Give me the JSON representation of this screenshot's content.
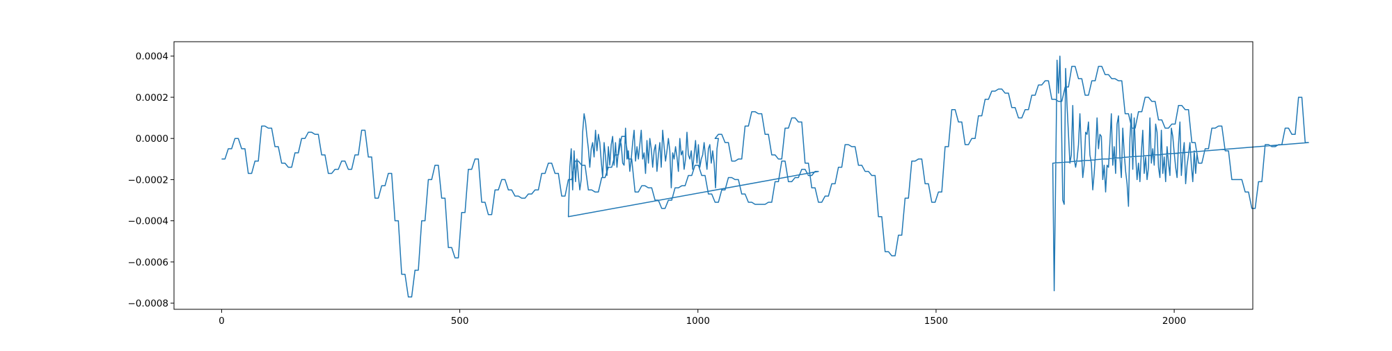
{
  "chart_data": {
    "type": "line",
    "title": "",
    "xlabel": "",
    "ylabel": "",
    "xlim": [
      -100,
      2165
    ],
    "ylim": [
      -0.00083,
      0.00047
    ],
    "grid": false,
    "legend": "none",
    "x_ticks": [
      {
        "value": 0,
        "label": "0"
      },
      {
        "value": 500,
        "label": "500"
      },
      {
        "value": 1000,
        "label": "1000"
      },
      {
        "value": 1500,
        "label": "1500"
      },
      {
        "value": 2000,
        "label": "2000"
      }
    ],
    "y_ticks": [
      {
        "value": 0.0004,
        "label": "0.0004"
      },
      {
        "value": 0.0002,
        "label": "0.0002"
      },
      {
        "value": 0.0,
        "label": "0.0000"
      },
      {
        "value": -0.0002,
        "label": "−0.0002"
      },
      {
        "value": -0.0004,
        "label": "−0.0004"
      },
      {
        "value": -0.0006,
        "label": "−0.0006"
      },
      {
        "value": -0.0008,
        "label": "−0.0008"
      }
    ],
    "series": [
      {
        "color": "#1f77b4",
        "segments": [
          {
            "start": 0,
            "stride": 7,
            "values": [
              -0.0001,
              -0.0001,
              -5e-05,
              -5e-05,
              0.0,
              0.0,
              -5e-05,
              -5e-05,
              -0.00017,
              -0.00017,
              -0.00011,
              -0.00011,
              6e-05,
              6e-05,
              5e-05,
              5e-05,
              -4e-05,
              -4e-05,
              -0.00012,
              -0.00012,
              -0.00014,
              -0.00014,
              -7e-05,
              -7e-05,
              0.0,
              0.0,
              3e-05,
              3e-05,
              2e-05,
              2e-05,
              -8e-05,
              -8e-05,
              -0.00017,
              -0.00017,
              -0.00015,
              -0.00015,
              -0.00011,
              -0.00011,
              -0.00015,
              -0.00015,
              -8e-05,
              -8e-05,
              4e-05,
              4e-05,
              -9e-05,
              -9e-05,
              -0.00029,
              -0.00029,
              -0.00023,
              -0.00023,
              -0.00017,
              -0.00017,
              -0.0004,
              -0.0004,
              -0.00066,
              -0.00066,
              -0.00077,
              -0.00077,
              -0.00064,
              -0.00064,
              -0.0004,
              -0.0004,
              -0.0002,
              -0.0002,
              -0.00013,
              -0.00013,
              -0.00029,
              -0.00029,
              -0.00053,
              -0.00053,
              -0.00058,
              -0.00058,
              -0.00036,
              -0.00036,
              -0.00015,
              -0.00015,
              -0.0001,
              -0.0001,
              -0.00031,
              -0.00031,
              -0.00037,
              -0.00037,
              -0.00025,
              -0.00025,
              -0.0002,
              -0.0002,
              -0.00025,
              -0.00025,
              -0.00028,
              -0.00028,
              -0.00029,
              -0.00029,
              -0.00027,
              -0.00027,
              -0.00025,
              -0.00025,
              -0.00017,
              -0.00017,
              -0.00012,
              -0.00012,
              -0.00017,
              -0.00017,
              -0.00028,
              -0.00028,
              -0.0002,
              -0.0002,
              -0.00011,
              -0.00011,
              -0.00013,
              -0.00013,
              -0.00025,
              -0.00025,
              -0.00026,
              -0.00026,
              -0.00019,
              -0.00019,
              -0.00014,
              -0.00014,
              -8e-05,
              -8e-05,
              1e-05,
              1e-05,
              -0.0001,
              -0.0001,
              -0.00026,
              -0.00026,
              -0.00023,
              -0.00023,
              -0.00024,
              -0.00024,
              -0.0003,
              -0.0003,
              -0.00034,
              -0.00034,
              -0.0003,
              -0.0003,
              -0.00024,
              -0.00024,
              -0.00023,
              -0.00023,
              -0.00018,
              -0.00018,
              -0.00013,
              -0.00013,
              -0.00018,
              -0.00018,
              -0.00027,
              -0.00027,
              -0.00031,
              -0.00031,
              -0.00025,
              -0.00025,
              -0.00019,
              -0.00019,
              -0.0002,
              -0.0002,
              -0.00027,
              -0.00027,
              -0.00031,
              -0.00031,
              -0.00032,
              -0.00032,
              -0.00032,
              -0.00032,
              -0.00031,
              -0.00031,
              -0.00021,
              -0.00021,
              -0.00011,
              -0.00011,
              -0.00021,
              -0.00021,
              -0.00019,
              -0.00019,
              -0.00015,
              -0.00015,
              -0.00018,
              -0.00018,
              -0.00016,
              -0.00016
            ]
          },
          {
            "start": 728,
            "stride": 3,
            "values": [
              -0.00038,
              -0.00014,
              -5e-05,
              -0.00025,
              -6e-05,
              -0.00021,
              -0.0001,
              -0.00018,
              -0.00025,
              -0.0002,
              3e-05,
              0.00012,
              8e-05,
              1e-05,
              -5e-05,
              -0.00014,
              -5e-05,
              -2e-05,
              -9e-05,
              4e-05,
              -6e-05,
              2e-05,
              -2e-05,
              -0.00011,
              -0.00019,
              -2e-05,
              -9e-05,
              -0.00018,
              -4e-05,
              -0.00013,
              -3e-05,
              1e-05,
              -0.00013,
              -2e-05,
              -0.00014,
              -6e-05,
              0.0,
              -3e-05,
              -0.00012,
              -0.00013,
              5e-05,
              -0.0001,
              -6e-05,
              -0.00016,
              -0.0001,
              -2e-05,
              4e-05,
              -0.00011,
              -4e-05,
              -0.0001,
              -3e-05,
              4e-05,
              -0.0001,
              -7e-05,
              -0.00017,
              -1e-05,
              -0.00012,
              0.0,
              -5e-05,
              -0.00014,
              -6e-05,
              -3e-05,
              -0.00016,
              -8e-05,
              -2e-05,
              -0.00014,
              4e-05,
              -4e-05,
              -0.00011,
              -6e-05,
              0.0,
              -6e-05,
              -0.00024,
              -7e-05,
              -0.0001,
              -4e-05,
              -9e-05,
              -0.00016,
              0.0,
              -8e-05,
              -6e-05,
              -0.00015,
              -0.0001,
              3e-05,
              -8e-05,
              -0.0001,
              -6e-05,
              -0.00015,
              -8e-05,
              -1e-05,
              -0.00012,
              -3e-05,
              -0.00014,
              -0.0001,
              -8e-05,
              -2e-05,
              -9e-05,
              -0.00015,
              -5e-05,
              -3e-05,
              -0.00012,
              -6e-05,
              -0.00012,
              -0.00024,
              -5e-05,
              0.0
            ]
          },
          {
            "start": 1036,
            "stride": 7,
            "values": [
              0.0,
              2e-05,
              2e-05,
              -2e-05,
              -2e-05,
              -0.00011,
              -0.00011,
              -0.0001,
              -0.0001,
              6e-05,
              6e-05,
              0.00013,
              0.00013,
              0.00012,
              0.00012,
              2e-05,
              2e-05,
              -8e-05,
              -8e-05,
              -0.0001,
              -0.0001,
              5e-05,
              5e-05,
              0.0001,
              0.0001,
              8e-05,
              8e-05,
              -0.00012,
              -0.00012,
              -0.00024,
              -0.00024,
              -0.00031,
              -0.00031,
              -0.00028,
              -0.00028,
              -0.00022,
              -0.00022,
              -0.00014,
              -0.00014,
              -3e-05,
              -3e-05,
              -4e-05,
              -4e-05,
              -0.00013,
              -0.00013,
              -0.00016,
              -0.00016,
              -0.00018,
              -0.00018,
              -0.00038,
              -0.00038,
              -0.00055,
              -0.00055,
              -0.00057,
              -0.00057,
              -0.00047,
              -0.00047,
              -0.00029,
              -0.00029,
              -0.00011,
              -0.00011,
              -0.0001,
              -0.0001,
              -0.00022,
              -0.00022,
              -0.00031,
              -0.00031,
              -0.00026,
              -0.00026,
              -4e-05,
              -4e-05,
              0.00014,
              0.00014,
              8e-05,
              8e-05,
              -3e-05,
              -3e-05,
              0.0,
              0.0,
              0.00011,
              0.00011,
              0.00019,
              0.00019,
              0.00023,
              0.00023,
              0.00024,
              0.00024,
              0.00022,
              0.00022,
              0.00015,
              0.00015,
              0.0001,
              0.0001,
              0.00014,
              0.00014,
              0.00021,
              0.00021,
              0.00026,
              0.00026,
              0.00028,
              0.00028,
              0.00019,
              0.00019,
              0.00018,
              0.00018,
              0.00025,
              0.00025,
              0.00035,
              0.00035,
              0.00029,
              0.00029,
              0.00021,
              0.00021,
              0.00028,
              0.00028,
              0.00035,
              0.00035,
              0.00031,
              0.00031,
              0.00029,
              0.00029,
              0.00028,
              0.00028,
              0.00012,
              0.00012,
              5e-05,
              5e-05,
              0.00013,
              0.00013,
              0.0002,
              0.0002,
              0.00018,
              0.00018,
              9e-05,
              9e-05,
              5e-05,
              5e-05,
              7e-05,
              7e-05,
              0.00016,
              0.00016,
              0.00014,
              0.00014,
              -2e-05,
              -2e-05,
              -0.00012,
              -0.00012,
              -5e-05,
              -5e-05,
              5e-05,
              5e-05,
              6e-05,
              6e-05,
              -6e-05,
              -6e-05,
              -0.0002,
              -0.0002,
              -0.0002,
              -0.0002,
              -0.00026,
              -0.00026,
              -0.00034,
              -0.00034,
              -0.00021,
              -0.00021,
              -3e-05,
              -3e-05,
              -4e-05,
              -4e-05,
              -3e-05,
              -3e-05,
              5e-05,
              5e-05,
              2e-05,
              2e-05,
              0.0002,
              0.0002,
              -2e-05,
              -2e-05
            ]
          },
          {
            "start": 1745,
            "stride": 3,
            "values": [
              -0.00012,
              -0.00074,
              -0.0002,
              0.00038,
              0.00022,
              0.0004,
              0.00012,
              -0.0003,
              -0.00032,
              0.00034,
              0.00016,
              2e-05,
              -0.00012,
              -8e-05,
              0.00016,
              -0.0001,
              -0.00014,
              -0.0001,
              -3e-05,
              0.00012,
              -5e-05,
              -0.00019,
              -0.00013,
              3e-05,
              2e-05,
              8e-05,
              -8e-05,
              -0.00012,
              -0.00025,
              -0.00017,
              -6e-05,
              0.0001,
              -5e-05,
              2e-05,
              1e-05,
              -0.0002,
              -0.00013,
              -0.00026,
              -0.00013,
              -0.00014,
              -2e-05,
              0.00012,
              -0.00013,
              -4e-05,
              -0.00017,
              7e-05,
              0.00011,
              -9e-05,
              -0.00019,
              5e-05,
              -7e-05,
              -0.00016,
              -0.00022,
              -0.00033,
              0.0,
              0.00012,
              -0.00015,
              0.0001,
              -8e-05,
              -0.0002,
              -0.00012,
              -0.00021,
              -7e-05,
              4e-05,
              -0.00017,
              -9e-05,
              -0.0002,
              -0.00014,
              0.0001,
              -0.00012,
              -5e-05,
              -0.00013,
              7e-05,
              3e-05,
              -0.00014,
              -0.00019,
              4e-05,
              -0.00017,
              -9e-05,
              -0.00021,
              -4e-05,
              -0.00012,
              -0.00018,
              5e-05,
              1e-05,
              -7e-05,
              -0.00014,
              -0.00019,
              -3e-05,
              8e-05,
              -0.00018,
              -8e-05,
              -2e-05,
              -0.00022,
              -0.00013,
              -8e-05,
              -2e-05,
              -0.00013,
              -0.00021,
              -6e-05,
              -0.00017,
              -7e-05
            ]
          }
        ]
      }
    ]
  }
}
